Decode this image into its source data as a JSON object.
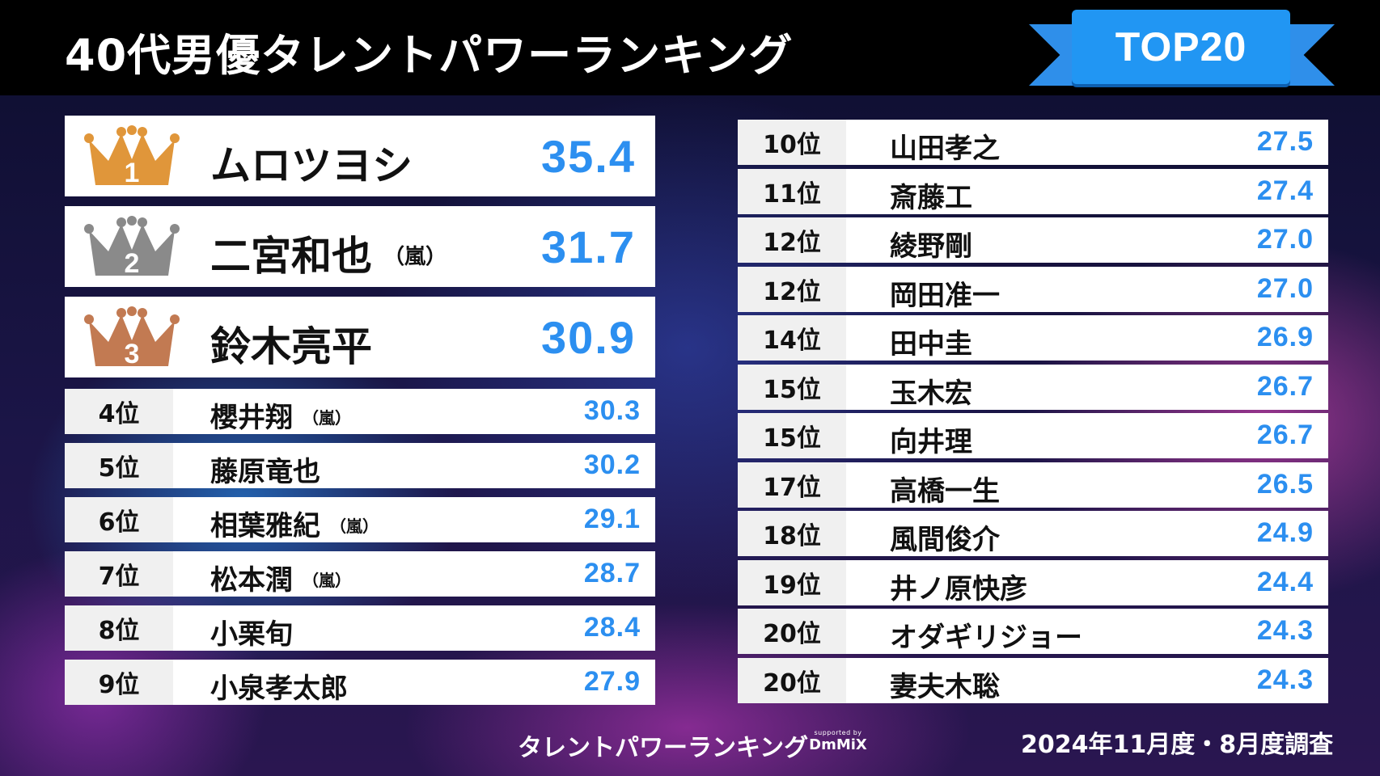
{
  "header": {
    "title": "40代男優タレントパワーランキング",
    "badge": "TOP20"
  },
  "colors": {
    "score": "#2c8ff0",
    "badge": "#2196f3",
    "gold": "#e0963a",
    "silver": "#8a8a8a",
    "bronze": "#c27a52"
  },
  "top3": [
    {
      "rank_icon": "1",
      "crown": "gold-crown-icon",
      "name": "ムロツヨシ",
      "group": "",
      "score": "35.4"
    },
    {
      "rank_icon": "2",
      "crown": "silver-crown-icon",
      "name": "二宮和也",
      "group": "（嵐）",
      "score": "31.7"
    },
    {
      "rank_icon": "3",
      "crown": "bronze-crown-icon",
      "name": "鈴木亮平",
      "group": "",
      "score": "30.9"
    }
  ],
  "left_rows": [
    {
      "rank": "4位",
      "name": "櫻井翔",
      "group": "（嵐）",
      "score": "30.3"
    },
    {
      "rank": "5位",
      "name": "藤原竜也",
      "group": "",
      "score": "30.2"
    },
    {
      "rank": "6位",
      "name": "相葉雅紀",
      "group": "（嵐）",
      "score": "29.1"
    },
    {
      "rank": "7位",
      "name": "松本潤",
      "group": "（嵐）",
      "score": "28.7"
    },
    {
      "rank": "8位",
      "name": "小栗旬",
      "group": "",
      "score": "28.4"
    },
    {
      "rank": "9位",
      "name": "小泉孝太郎",
      "group": "",
      "score": "27.9"
    }
  ],
  "right_rows": [
    {
      "rank": "10位",
      "name": "山田孝之",
      "score": "27.5"
    },
    {
      "rank": "11位",
      "name": "斎藤工",
      "score": "27.4"
    },
    {
      "rank": "12位",
      "name": "綾野剛",
      "score": "27.0"
    },
    {
      "rank": "12位",
      "name": "岡田准一",
      "score": "27.0"
    },
    {
      "rank": "14位",
      "name": "田中圭",
      "score": "26.9"
    },
    {
      "rank": "15位",
      "name": "玉木宏",
      "score": "26.7"
    },
    {
      "rank": "15位",
      "name": "向井理",
      "score": "26.7"
    },
    {
      "rank": "17位",
      "name": "高橋一生",
      "score": "26.5"
    },
    {
      "rank": "18位",
      "name": "風間俊介",
      "score": "24.9"
    },
    {
      "rank": "19位",
      "name": "井ノ原快彦",
      "score": "24.4"
    },
    {
      "rank": "20位",
      "name": "オダギリジョー",
      "score": "24.3"
    },
    {
      "rank": "20位",
      "name": "妻夫木聡",
      "score": "24.3"
    }
  ],
  "footer": {
    "logo": "タレントパワーランキング",
    "supported_by": "supported by",
    "brand": "DmMiX",
    "date": "2024年11月度・8月度調査"
  }
}
